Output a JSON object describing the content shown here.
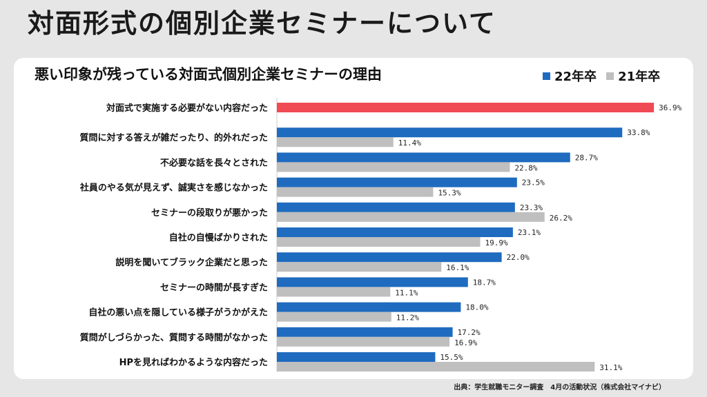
{
  "page": {
    "title": "対面形式の個別企業セミナーについて",
    "source": "出典：学生就職モニター調査　4月の活動状況（株式会社マイナビ）"
  },
  "colors": {
    "series_22": "#1f6bbf",
    "series_21": "#bfbfbf",
    "highlight": "#f04b55"
  },
  "chart_data": {
    "type": "bar",
    "orientation": "horizontal",
    "title": "悪い印象が残っている対面式個別企業セミナーの理由",
    "legend_position": "top-right",
    "value_suffix": "%",
    "xlim": [
      0,
      40
    ],
    "categories": [
      "対面式で実施する必要がない内容だった",
      "質問に対する答えが雑だったり、的外れだった",
      "不必要な話を長々とされた",
      "社員のやる気が見えず、誠実さを感じなかった",
      "セミナーの段取りが悪かった",
      "自社の自慢ばかりされた",
      "説明を聞いてブラック企業だと思った",
      "セミナーの時間が長すぎた",
      "自社の悪い点を隠している様子がうかがえた",
      "質問がしづらかった、質問する時間がなかった",
      "HPを見ればわかるような内容だった"
    ],
    "series": [
      {
        "name": "22年卒",
        "values": [
          36.9,
          33.8,
          28.7,
          23.5,
          23.3,
          23.1,
          22.0,
          18.7,
          18.0,
          17.2,
          15.5
        ]
      },
      {
        "name": "21年卒",
        "values": [
          null,
          11.4,
          22.8,
          15.3,
          26.2,
          19.9,
          16.1,
          11.1,
          11.2,
          16.9,
          31.1
        ]
      }
    ],
    "highlight_index": 0
  }
}
